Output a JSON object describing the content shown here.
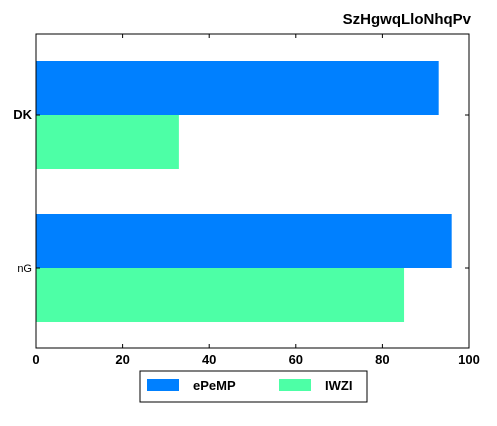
{
  "chart_data": {
    "type": "bar",
    "orientation": "horizontal",
    "title": "SzHgwqLloNhqPv",
    "categories": [
      "DK",
      "nG"
    ],
    "series": [
      {
        "name": "ePeMP",
        "values": [
          93,
          96
        ],
        "color": "#0080ff"
      },
      {
        "name": "IWZI",
        "values": [
          33,
          85
        ],
        "color": "#4dffa6"
      }
    ],
    "xlim": [
      0,
      100
    ],
    "xticks": [
      0,
      20,
      40,
      60,
      80,
      100
    ],
    "xlabel": "",
    "ylabel": "",
    "grid": false,
    "legend": "bottom-center"
  }
}
